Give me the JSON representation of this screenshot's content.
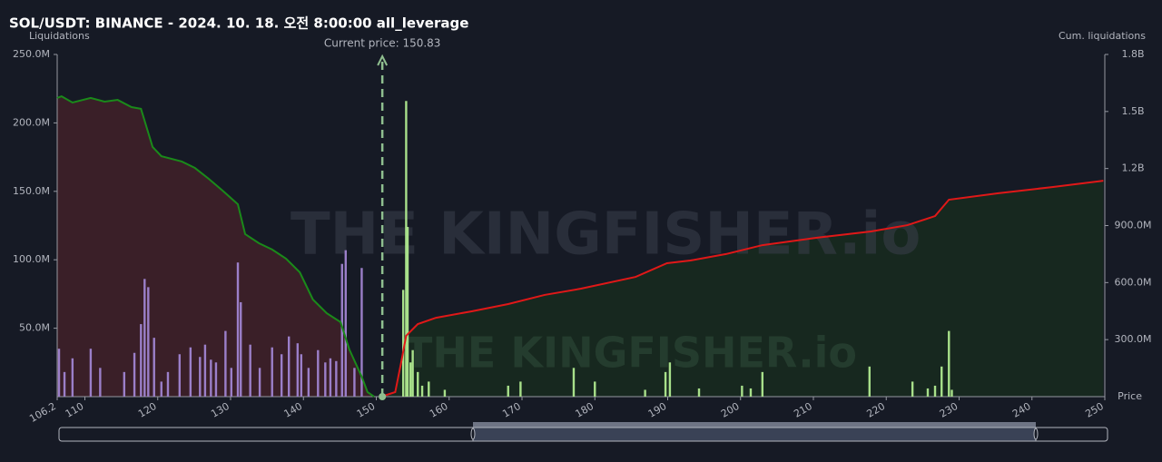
{
  "chart_data": {
    "type": "bar",
    "title": "SOL/USDT: BINANCE - 2024. 10. 18. 오전 8:00:00 all_leverage",
    "y_label": "Liquidations",
    "y2_label": "Cum. liquidations",
    "x_label": "Price",
    "watermark": "THE KINGFISHER.io",
    "current_price": 150.83,
    "current_price_label": "Current price: 150.83",
    "xlim": [
      106.2,
      250
    ],
    "xticks": [
      106.2,
      110,
      120,
      130,
      140,
      150,
      160,
      170,
      180,
      190,
      200,
      210,
      220,
      230,
      240,
      250
    ],
    "ylim": [
      0,
      250000000
    ],
    "yticks": [
      {
        "value": 50000000,
        "label": "50.0M"
      },
      {
        "value": 100000000,
        "label": "100.0M"
      },
      {
        "value": 150000000,
        "label": "150.0M"
      },
      {
        "value": 200000000,
        "label": "200.0M"
      },
      {
        "value": 250000000,
        "label": "250.0M"
      }
    ],
    "y2lim": [
      0,
      1800000000
    ],
    "y2ticks": [
      {
        "value": 300000000,
        "label": "300.0M"
      },
      {
        "value": 600000000,
        "label": "600.0M"
      },
      {
        "value": 900000000,
        "label": "900.0M"
      },
      {
        "value": 1200000000,
        "label": "1.2B"
      },
      {
        "value": 1500000000,
        "label": "1.5B"
      },
      {
        "value": 1800000000,
        "label": "1.8B"
      }
    ],
    "series": [
      {
        "type": "bar",
        "color": "#9b7fc9",
        "x": [
          106.45,
          107.2,
          108.3,
          110.8,
          112.1,
          115.4,
          116.8,
          117.7,
          118.2,
          118.7,
          119.5,
          120.5,
          121.4,
          123.0,
          124.5,
          125.8,
          126.5,
          127.3,
          128.0,
          129.3,
          130.1,
          131.0,
          131.4,
          132.7,
          134.0,
          135.7,
          137.0,
          138.0,
          139.2,
          139.7,
          140.7,
          142.0,
          143.0,
          143.7,
          144.5,
          145.3,
          145.8,
          147.0,
          148.0
        ],
        "values": [
          35000000,
          18000000,
          28000000,
          35000000,
          21000000,
          18000000,
          32000000,
          53000000,
          86000000,
          80000000,
          43000000,
          11000000,
          18000000,
          31000000,
          36000000,
          29000000,
          38000000,
          27000000,
          25000000,
          48000000,
          21000000,
          98000000,
          69000000,
          38000000,
          21000000,
          36000000,
          31000000,
          44000000,
          39000000,
          31000000,
          21000000,
          34000000,
          25000000,
          28000000,
          26000000,
          97000000,
          107000000,
          21000000,
          94000000
        ]
      },
      {
        "type": "bar",
        "color": "#a8e08a",
        "x": [
          153.7,
          154.1,
          154.3,
          154.7,
          155.0,
          155.7,
          156.3,
          157.2,
          159.4,
          168.1,
          169.8,
          177.1,
          180.0,
          186.9,
          189.7,
          190.3,
          194.3,
          200.2,
          201.4,
          203.0,
          217.7,
          223.6,
          225.7,
          226.7,
          227.6,
          228.6,
          229.0
        ],
        "values": [
          78000000,
          216000000,
          124000000,
          25000000,
          34000000,
          18000000,
          8000000,
          11000000,
          5000000,
          8000000,
          11000000,
          21000000,
          11000000,
          5000000,
          18000000,
          25000000,
          6000000,
          8000000,
          6000000,
          18000000,
          22000000,
          11000000,
          6000000,
          8000000,
          22000000,
          48000000,
          5000000
        ]
      },
      {
        "type": "line",
        "axis": "y2",
        "color": "#1a8a1a",
        "fill": "#3a1f28",
        "x": [
          106.2,
          106.8,
          108.3,
          110.8,
          112.7,
          114.5,
          116.4,
          117.7,
          119.3,
          120.5,
          123.3,
          125.1,
          127.0,
          128.9,
          131.0,
          132.0,
          133.9,
          135.7,
          137.6,
          139.5,
          141.3,
          143.2,
          145.1,
          146.3,
          148.0,
          148.8,
          149.7
        ],
        "values": [
          1571000000,
          1580000000,
          1547000000,
          1571000000,
          1552000000,
          1561000000,
          1523000000,
          1514000000,
          1313000000,
          1265000000,
          1237000000,
          1203000000,
          1146000000,
          1084000000,
          1012000000,
          855000000,
          807000000,
          774000000,
          726000000,
          654000000,
          511000000,
          439000000,
          392000000,
          248000000,
          105000000,
          24000000,
          0
        ]
      },
      {
        "type": "line",
        "axis": "y2",
        "color": "#e01818",
        "fill": "#17281f",
        "x": [
          150.7,
          152.6,
          153.4,
          154.1,
          155.7,
          158.2,
          163.1,
          168.1,
          173.1,
          178.1,
          185.6,
          189.9,
          193.1,
          198.0,
          203.0,
          210.5,
          217.9,
          222.9,
          226.7,
          228.6,
          235.4,
          242.9,
          249.8
        ],
        "values": [
          0,
          24000000,
          177000000,
          320000000,
          382000000,
          415000000,
          449000000,
          487000000,
          535000000,
          568000000,
          630000000,
          702000000,
          716000000,
          750000000,
          797000000,
          836000000,
          869000000,
          902000000,
          950000000,
          1036000000,
          1070000000,
          1103000000,
          1136000000
        ]
      }
    ]
  }
}
